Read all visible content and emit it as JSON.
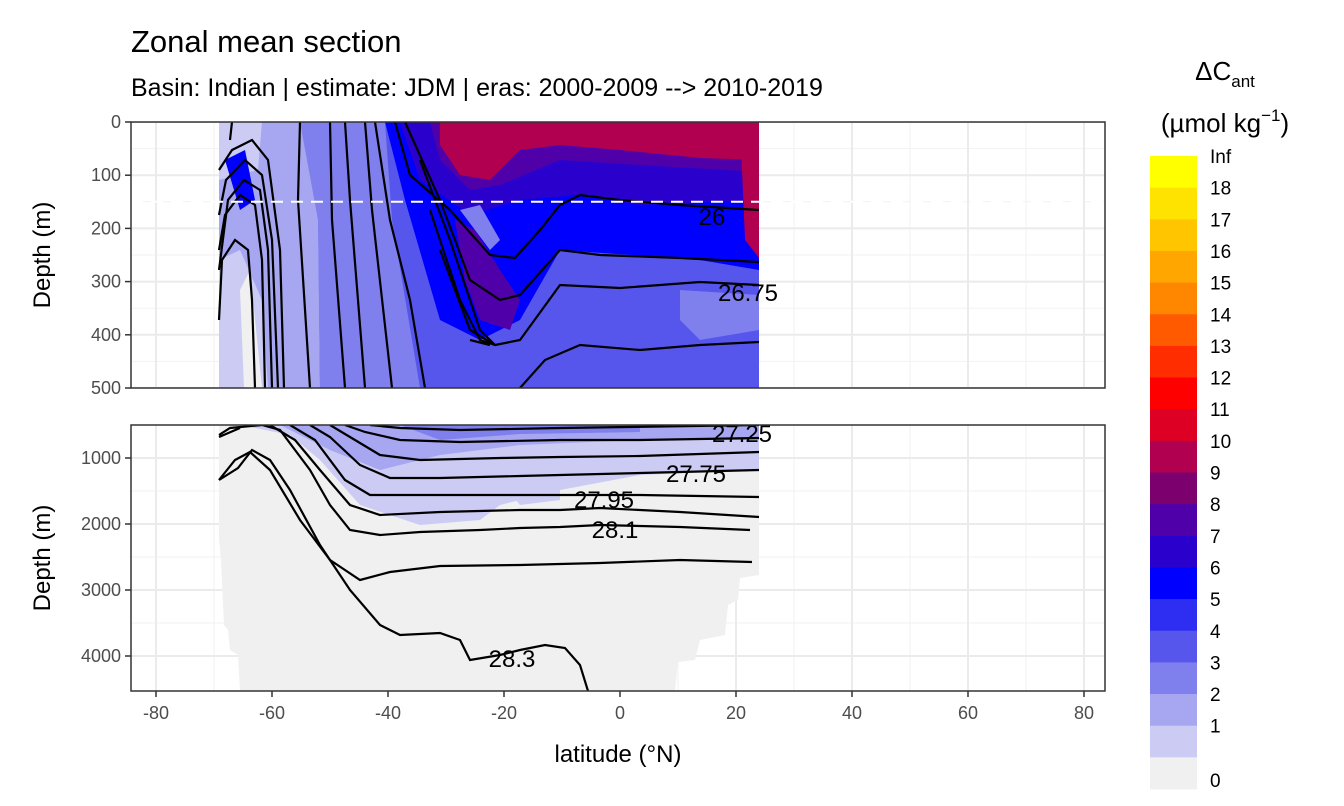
{
  "chart_data": {
    "type": "contour-section",
    "title": "Zonal mean section",
    "subtitle": "Basin: Indian | estimate: JDM  | eras: 2000-2009 --> 2010-2019",
    "xlabel": "latitude (°N)",
    "ylabel": "Depth (m)",
    "xlim": [
      -85,
      85
    ],
    "x_ticks": [
      -80,
      -60,
      -40,
      -20,
      0,
      20,
      40,
      60,
      80
    ],
    "panels": [
      {
        "name": "upper",
        "ylim": [
          0,
          500
        ],
        "y_ticks": [
          0,
          100,
          200,
          300,
          400,
          500
        ],
        "reference_line_depth": 150,
        "data_x_range": [
          -69,
          24
        ]
      },
      {
        "name": "lower",
        "ylim": [
          500,
          4500
        ],
        "y_ticks": [
          1000,
          2000,
          3000,
          4000
        ],
        "data_x_range": [
          -69,
          24
        ]
      }
    ],
    "isopycnal_labels": [
      "26",
      "26.75",
      "27.25",
      "27.75",
      "27.95",
      "28.1",
      "28.3"
    ],
    "legend": {
      "title_main": "ΔC",
      "title_sub": "ant",
      "title_unit": "(µmol kg",
      "title_unit_sup": "−1",
      "title_unit_close": ")",
      "breaks": [
        "0",
        "1",
        "2",
        "3",
        "4",
        "5",
        "6",
        "7",
        "8",
        "9",
        "10",
        "11",
        "12",
        "13",
        "14",
        "15",
        "16",
        "17",
        "18",
        "Inf"
      ],
      "colors": [
        "#f0f0f0",
        "#cbcbf4",
        "#a6a6f1",
        "#7f7fee",
        "#5656ec",
        "#2e2ef2",
        "#0000ff",
        "#2a00cc",
        "#5000a8",
        "#7c006e",
        "#b0004f",
        "#dd0024",
        "#ff0000",
        "#ff2d00",
        "#ff5a00",
        "#ff8700",
        "#ffa700",
        "#ffc600",
        "#ffe300",
        "#ffff00"
      ]
    }
  }
}
